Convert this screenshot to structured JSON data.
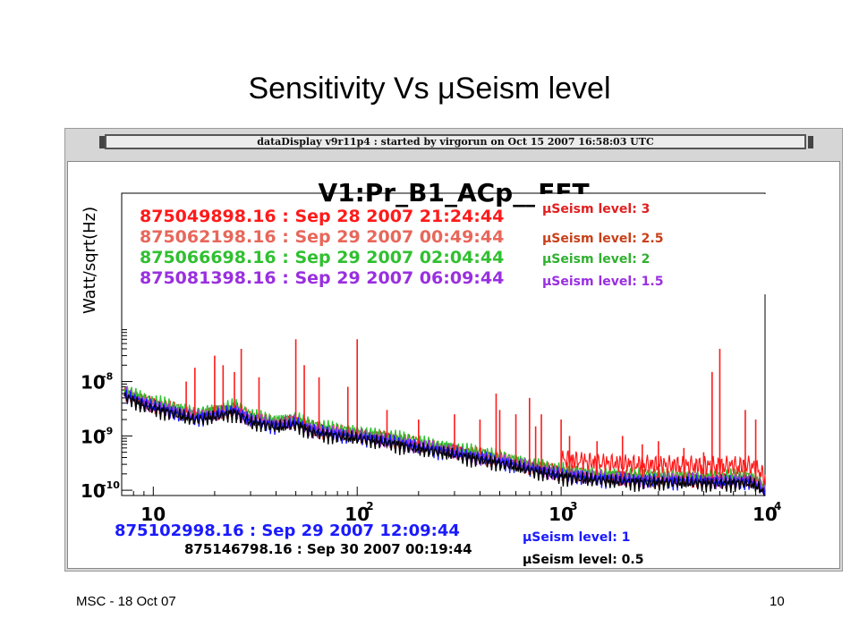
{
  "slide": {
    "title": "Sensitivity Vs μSeism level",
    "footer_left": "MSC - 18 Oct 07",
    "page_number": "10"
  },
  "banner": "dataDisplay v9r11p4 : started by virgorun on Oct 15 2007 16:58:03 UTC",
  "colors": {
    "red": "#ff1a1a",
    "salmon": "#e8675a",
    "green": "#30c030",
    "purple": "#9a2fe0",
    "blue": "#1a1aff",
    "black": "#000000"
  },
  "chart_data": {
    "type": "line",
    "title": "V1:Pr_B1_ACp__FFT",
    "ylabel": "Watt/sqrt(Hz)",
    "xlabel": "",
    "x_scale": "log",
    "y_scale": "log",
    "xlim": [
      7,
      10000
    ],
    "ylim": [
      8e-11,
      1.2e-07
    ],
    "x_ticks": [
      {
        "value": 10,
        "label": "10"
      },
      {
        "value": 100,
        "label": "10",
        "exp": "2"
      },
      {
        "value": 1000,
        "label": "10",
        "exp": "3"
      },
      {
        "value": 10000,
        "label": "10",
        "exp": "4"
      }
    ],
    "y_ticks": [
      {
        "value": 1e-08,
        "label": "10",
        "exp": "-8"
      },
      {
        "value": 1e-09,
        "label": "10",
        "exp": "-9"
      },
      {
        "value": 1e-10,
        "label": "10",
        "exp": "-10"
      }
    ],
    "legend_top": [
      {
        "text": "875049898.16 : Sep 28 2007 21:24:44",
        "color": "#ff1a1a"
      },
      {
        "text": "875062198.16 : Sep 29 2007 00:49:44",
        "color": "#e8675a"
      },
      {
        "text": "875066698.16 : Sep 29 2007 02:04:44",
        "color": "#30c030"
      },
      {
        "text": "875081398.16 : Sep 29 2007 06:09:44",
        "color": "#9a2fe0"
      }
    ],
    "legend_bottom": [
      {
        "text": "875102998.16 : Sep 29 2007 12:09:44",
        "color": "#1a1aff"
      },
      {
        "text": "875146798.16 : Sep 30 2007 00:19:44",
        "color": "#000000"
      }
    ],
    "seism_labels_top": [
      {
        "text": "μSeism level: 3",
        "color": "#e02020"
      },
      {
        "text": "μSeism level: 2.5",
        "color": "#c8401a"
      },
      {
        "text": "μSeism level: 2",
        "color": "#30b030"
      },
      {
        "text": "μSeism level: 1.5",
        "color": "#9a2fe0"
      }
    ],
    "seism_labels_bottom": [
      {
        "text": "μSeism level: 1",
        "color": "#1a1aff"
      },
      {
        "text": "μSeism level: 0.5",
        "color": "#000000"
      }
    ],
    "baseline": [
      [
        7.2,
        6e-09
      ],
      [
        9,
        4e-09
      ],
      [
        12,
        3e-09
      ],
      [
        16,
        2.2e-09
      ],
      [
        20,
        2.5e-09
      ],
      [
        25,
        3e-09
      ],
      [
        30,
        2e-09
      ],
      [
        40,
        1.6e-09
      ],
      [
        50,
        1.8e-09
      ],
      [
        60,
        1.3e-09
      ],
      [
        80,
        1.1e-09
      ],
      [
        100,
        1e-09
      ],
      [
        150,
        8e-10
      ],
      [
        200,
        6.5e-10
      ],
      [
        300,
        5e-10
      ],
      [
        500,
        3.5e-10
      ],
      [
        700,
        2.6e-10
      ],
      [
        1000,
        2e-10
      ],
      [
        1500,
        1.7e-10
      ],
      [
        2000,
        1.6e-10
      ],
      [
        3000,
        1.55e-10
      ],
      [
        5000,
        1.5e-10
      ],
      [
        7000,
        1.5e-10
      ],
      [
        8500,
        1.5e-10
      ],
      [
        9500,
        1.2e-10
      ],
      [
        10000,
        8.5e-11
      ]
    ],
    "series": [
      {
        "color": "#ff1a1a",
        "scale": 1.12
      },
      {
        "color": "#e8675a",
        "scale": 1.08
      },
      {
        "color": "#30c030",
        "scale": 1.25
      },
      {
        "color": "#9a2fe0",
        "scale": 1.05
      },
      {
        "color": "#1a1aff",
        "scale": 0.98
      },
      {
        "color": "#000000",
        "scale": 0.9
      }
    ],
    "peaks": [
      [
        14.5,
        1e-08
      ],
      [
        16,
        1.8e-08
      ],
      [
        20,
        3e-08
      ],
      [
        22,
        2e-08
      ],
      [
        25,
        1.5e-08
      ],
      [
        27,
        4e-08
      ],
      [
        33,
        1.2e-08
      ],
      [
        50,
        6e-08
      ],
      [
        55,
        2e-08
      ],
      [
        65,
        1.2e-08
      ],
      [
        90,
        8e-09
      ],
      [
        100,
        6e-08
      ],
      [
        140,
        3e-09
      ],
      [
        200,
        2e-09
      ],
      [
        300,
        2.5e-09
      ],
      [
        400,
        2e-09
      ],
      [
        480,
        6e-09
      ],
      [
        500,
        3e-09
      ],
      [
        600,
        2.5e-09
      ],
      [
        700,
        5e-09
      ],
      [
        750,
        1.5e-09
      ],
      [
        800,
        2.5e-09
      ],
      [
        1000,
        2e-09
      ],
      [
        1100,
        1e-09
      ],
      [
        1500,
        8e-10
      ],
      [
        2000,
        1e-09
      ],
      [
        2500,
        7e-10
      ],
      [
        3000,
        8e-10
      ],
      [
        4000,
        6e-10
      ],
      [
        5000,
        5e-10
      ],
      [
        5500,
        1.5e-08
      ],
      [
        6000,
        4e-08
      ],
      [
        8000,
        3e-09
      ],
      [
        9000,
        2e-09
      ]
    ]
  }
}
